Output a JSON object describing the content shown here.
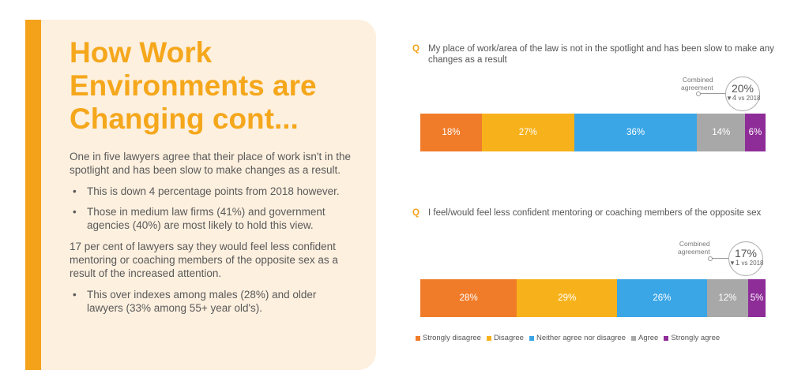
{
  "page": {
    "title_lines": [
      "How Work",
      "Environments are",
      "Changing cont..."
    ],
    "paragraphs": [
      "One in five lawyers agree that their place of work isn't in the spotlight and has been slow to make changes as a result.",
      "17 per cent of lawyers say they would feel less confident mentoring or coaching members of the opposite sex as a result of the increased attention."
    ],
    "bullets_1": [
      "This is down 4 percentage points from 2018 however.",
      "Those in medium law firms (41%) and government agencies (40%) are most likely to hold this view."
    ],
    "bullets_2": [
      "This over indexes among males (28%) and older lawyers (33% among 55+ year old's)."
    ],
    "q_marker": "Q",
    "combined_label": [
      "Combined",
      "agreement"
    ],
    "colors": {
      "accent": "#f5a71c",
      "panel_bg": "#fdf0df",
      "strongly_disagree": "#f07c2a",
      "disagree": "#f7b21b",
      "neither": "#3ba6e6",
      "agree": "#a8a8a8",
      "strongly_agree": "#8e2c98"
    }
  },
  "chart_data": [
    {
      "type": "bar",
      "stacked": true,
      "orientation": "horizontal",
      "question": "My place of work/area of the law is not in the spotlight and has been slow to make any changes as a result",
      "categories": [
        "Strongly disagree",
        "Disagree",
        "Neither agree nor disagree",
        "Agree",
        "Strongly agree"
      ],
      "values": [
        18,
        27,
        36,
        14,
        6
      ],
      "labels": [
        "18%",
        "27%",
        "36%",
        "14%",
        "6%"
      ],
      "combined_agreement": "20%",
      "change_arrow": "▼",
      "change_value": "4",
      "change_suffix": " vs 2018"
    },
    {
      "type": "bar",
      "stacked": true,
      "orientation": "horizontal",
      "question": "I feel/would feel less confident mentoring or coaching members of the opposite sex",
      "categories": [
        "Strongly disagree",
        "Disagree",
        "Neither agree nor disagree",
        "Agree",
        "Strongly agree"
      ],
      "values": [
        28,
        29,
        26,
        12,
        5
      ],
      "labels": [
        "28%",
        "29%",
        "26%",
        "12%",
        "5%"
      ],
      "combined_agreement": "17%",
      "change_arrow": "▼",
      "change_value": "1",
      "change_suffix": " vs 2018"
    }
  ],
  "legend": {
    "items": [
      {
        "label": "Strongly disagree",
        "color": "#f07c2a"
      },
      {
        "label": "Disagree",
        "color": "#f7b21b"
      },
      {
        "label": "Neither agree nor disagree",
        "color": "#3ba6e6"
      },
      {
        "label": "Agree",
        "color": "#a8a8a8"
      },
      {
        "label": "Strongly agree",
        "color": "#8e2c98"
      }
    ]
  }
}
